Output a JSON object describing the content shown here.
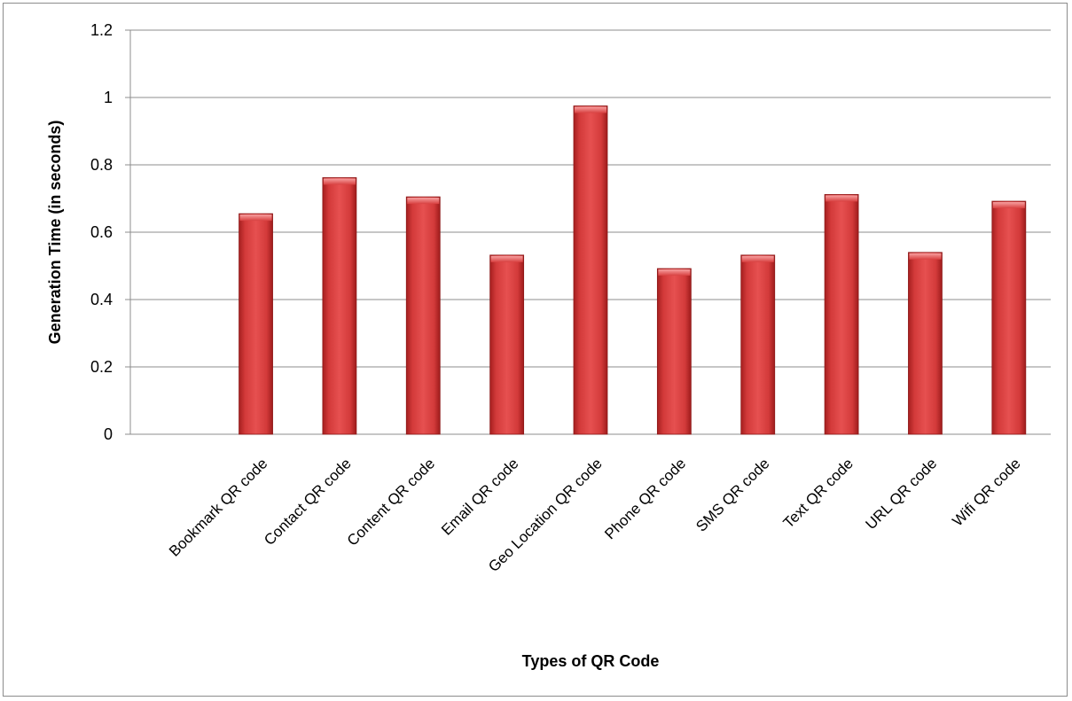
{
  "chart_data": {
    "type": "bar",
    "title": "",
    "xlabel": "Types of QR Code",
    "ylabel": "Generation Time (in seconds)",
    "ylim": [
      0,
      1.2
    ],
    "yticks": [
      "0",
      "0.2",
      "0.4",
      "0.6",
      "0.8",
      "1",
      "1.2"
    ],
    "categories": [
      "Bookmark QR code",
      "Contact QR code",
      "Content QR code",
      "Email QR code",
      "Geo Location QR code",
      "Phone QR code",
      "SMS QR code",
      "Text QR code",
      "URL QR code",
      "Wifi QR code"
    ],
    "values": [
      0.655,
      0.762,
      0.705,
      0.532,
      0.975,
      0.492,
      0.532,
      0.712,
      0.54,
      0.692
    ],
    "grid": true,
    "legend": "none",
    "bar_color": "#cc3333"
  }
}
